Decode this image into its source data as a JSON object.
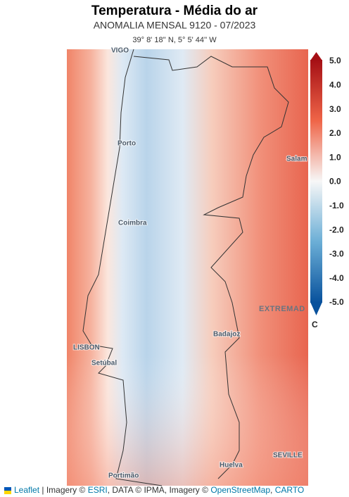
{
  "header": {
    "title": "Temperatura - Média do ar",
    "subtitle": "ANOMALIA MENSAL 9120 - 07/2023",
    "coordinates": "39° 8' 18'' N, 5° 5' 44'' W"
  },
  "map": {
    "cities": [
      "VIGO",
      "Porto",
      "Coimbra",
      "LISBON",
      "Setúbal",
      "Badajoz",
      "EXTREMAD",
      "Salam",
      "SEVILLE",
      "Huelva",
      "Portimão"
    ]
  },
  "colorbar": {
    "lim": [
      -5,
      5
    ],
    "unit": "C",
    "ticks": [
      {
        "value": 5,
        "label": "5.0"
      },
      {
        "value": 4,
        "label": "4.0"
      },
      {
        "value": 3,
        "label": "3.0"
      },
      {
        "value": 2,
        "label": "2.0"
      },
      {
        "value": 1,
        "label": "1.0"
      },
      {
        "value": 0,
        "label": "0.0"
      },
      {
        "value": -1,
        "label": "-1.0"
      },
      {
        "value": -2,
        "label": "-2.0"
      },
      {
        "value": -3,
        "label": "-3.0"
      },
      {
        "value": -4,
        "label": "-4.0"
      },
      {
        "value": -5,
        "label": "-5.0"
      }
    ]
  },
  "attribution": [
    {
      "text": "Leaflet",
      "link": true
    },
    {
      "text": " | Imagery © ",
      "link": false
    },
    {
      "text": "ESRI",
      "link": true
    },
    {
      "text": ", DATA © IPMA, Imagery © ",
      "link": false
    },
    {
      "text": "OpenStreetMap",
      "link": true
    },
    {
      "text": ", ",
      "link": false
    },
    {
      "text": "CARTO",
      "link": true
    }
  ]
}
